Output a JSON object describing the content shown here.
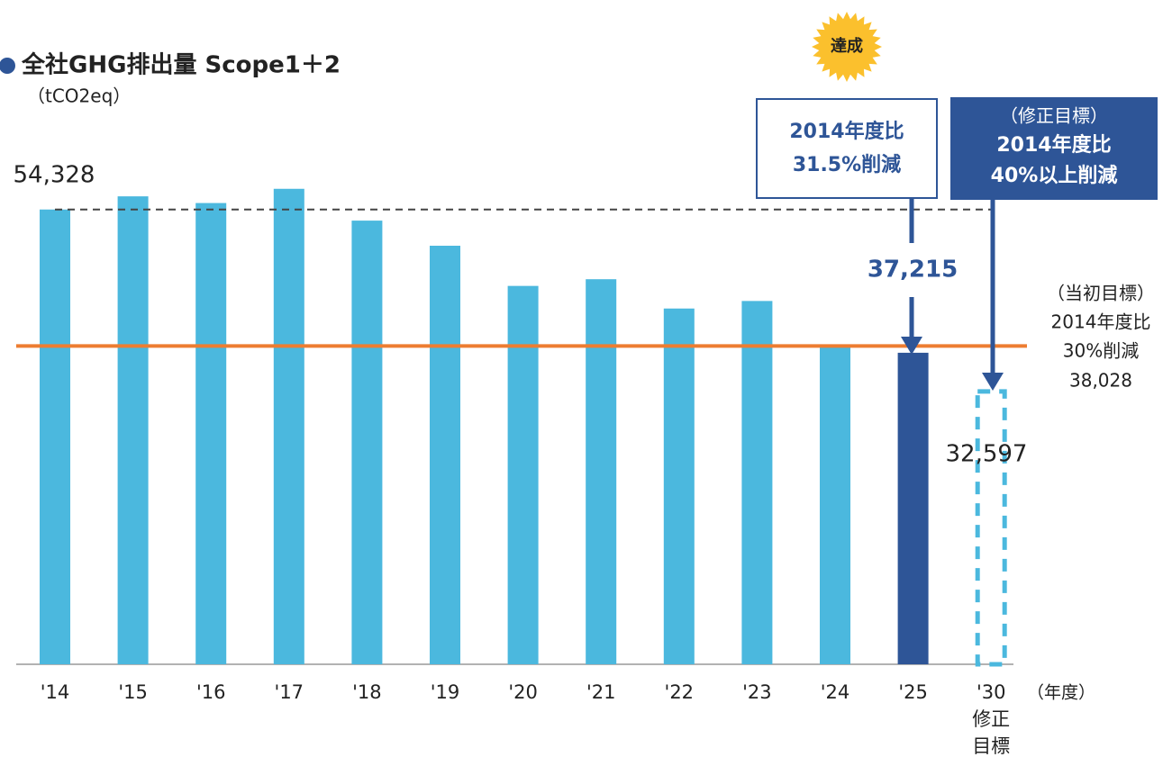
{
  "chart_data": {
    "type": "bar",
    "title": "全社GHG排出量 Scope1＋2",
    "y_unit": "（tCO2eq）",
    "x_unit": "（年度）",
    "categories": [
      "'14",
      "'15",
      "'16",
      "'17",
      "'18",
      "'19",
      "'20",
      "'21",
      "'22",
      "'23",
      "'24",
      "'25",
      "'30"
    ],
    "category_note": [
      "修正",
      "目標"
    ],
    "values": [
      54328,
      55900,
      55100,
      56800,
      53000,
      50000,
      45200,
      46000,
      42500,
      43400,
      38200,
      37215,
      32597
    ],
    "value_labels": [
      "54,328",
      null,
      null,
      null,
      null,
      null,
      null,
      null,
      null,
      null,
      null,
      "37,215",
      "32,597"
    ],
    "colors": [
      "#4bb8de",
      "#4bb8de",
      "#4bb8de",
      "#4bb8de",
      "#4bb8de",
      "#4bb8de",
      "#4bb8de",
      "#4bb8de",
      "#4bb8de",
      "#4bb8de",
      "#4bb8de",
      "#2e5597",
      "#4bb8de"
    ],
    "dashed": [
      false,
      false,
      false,
      false,
      false,
      false,
      false,
      false,
      false,
      false,
      false,
      false,
      true
    ],
    "ylim": [
      0,
      60000
    ],
    "target_line": {
      "value": 38028,
      "label": "38,028",
      "text": [
        "（当初目標）",
        "2014年度比",
        "30%削減"
      ],
      "color": "#ed7d31"
    },
    "callouts": [
      {
        "lines": [
          "2014年度比",
          "31.5%削減"
        ]
      },
      {
        "lines": [
          "（修正目標）",
          "2014年度比",
          "40%以上削減"
        ]
      }
    ],
    "badge": "達成"
  }
}
